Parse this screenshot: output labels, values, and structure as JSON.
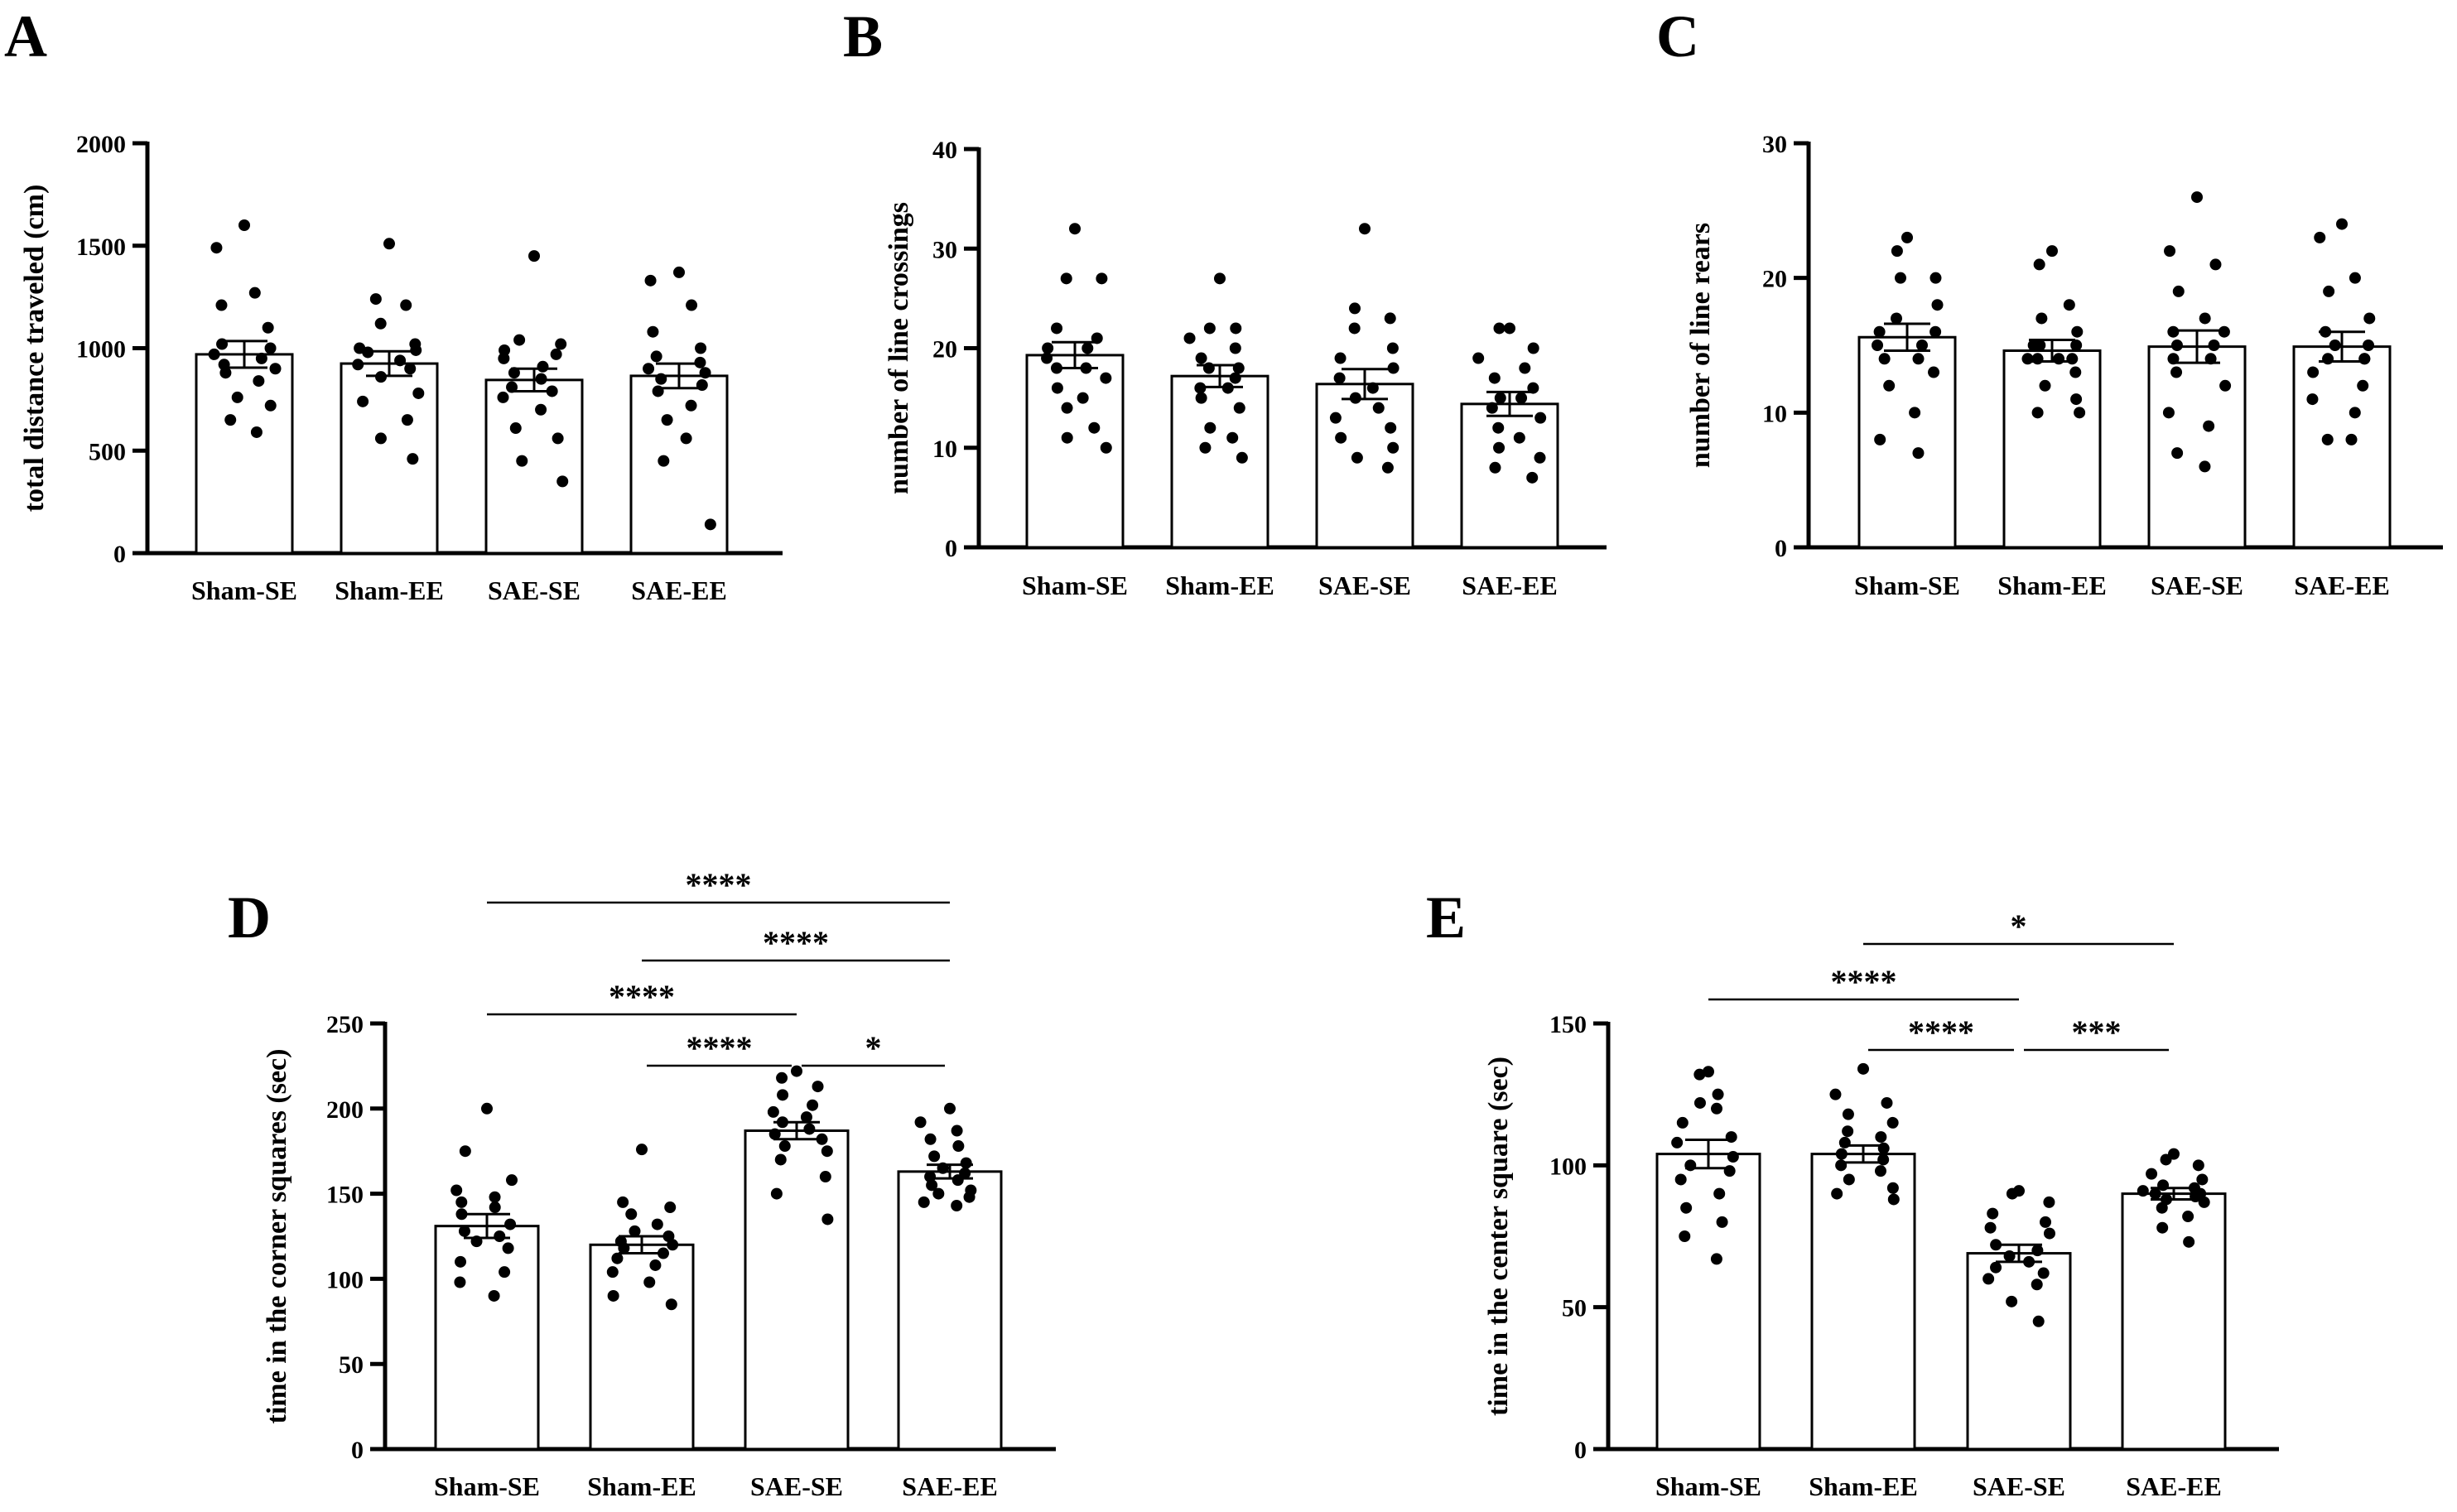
{
  "chart_data": [
    {
      "panel": "A",
      "type": "bar",
      "ylabel": "total distance traveled (cm)",
      "ylim": [
        0,
        2000
      ],
      "yticks": [
        "0",
        "500",
        "1000",
        "1500",
        "2000"
      ],
      "categories": [
        "Sham-SE",
        "Sham-EE",
        "SAE-SE",
        "SAE-EE"
      ],
      "values": [
        970,
        925,
        845,
        865
      ],
      "errors": [
        65,
        60,
        55,
        60
      ],
      "points": [
        [
          1600,
          1490,
          1270,
          1210,
          1100,
          1020,
          1000,
          970,
          950,
          920,
          900,
          880,
          840,
          760,
          720,
          650,
          590
        ],
        [
          1510,
          1240,
          1210,
          1120,
          1020,
          1000,
          990,
          980,
          940,
          920,
          900,
          860,
          780,
          740,
          650,
          560,
          460
        ],
        [
          1450,
          1040,
          1020,
          990,
          970,
          950,
          910,
          880,
          850,
          810,
          790,
          760,
          700,
          610,
          560,
          450,
          350
        ],
        [
          1370,
          1330,
          1210,
          1080,
          1000,
          960,
          930,
          900,
          880,
          850,
          820,
          790,
          720,
          650,
          560,
          450,
          140
        ]
      ],
      "significance": []
    },
    {
      "panel": "B",
      "type": "bar",
      "ylabel": "number of line crossings",
      "ylim": [
        0,
        40
      ],
      "yticks": [
        "0",
        "10",
        "20",
        "30",
        "40"
      ],
      "categories": [
        "Sham-SE",
        "Sham-EE",
        "SAE-SE",
        "SAE-EE"
      ],
      "values": [
        19.3,
        17.2,
        16.4,
        14.4
      ],
      "errors": [
        1.3,
        1.1,
        1.5,
        1.2
      ],
      "points": [
        [
          32,
          27,
          27,
          22,
          21,
          20,
          20,
          19,
          18,
          18,
          17,
          16,
          15,
          14,
          12,
          11,
          10
        ],
        [
          27,
          22,
          22,
          21,
          20,
          19,
          18,
          18,
          17,
          16,
          16,
          15,
          14,
          12,
          11,
          10,
          9
        ],
        [
          32,
          24,
          23,
          22,
          20,
          19,
          18,
          17,
          16,
          15,
          14,
          13,
          12,
          11,
          10,
          9,
          8
        ],
        [
          22,
          22,
          20,
          19,
          18,
          17,
          16,
          15,
          15,
          14,
          13,
          12,
          11,
          10,
          9,
          8,
          7
        ]
      ],
      "significance": []
    },
    {
      "panel": "C",
      "type": "bar",
      "ylabel": "number of line rears",
      "ylim": [
        0,
        30
      ],
      "yticks": [
        "0",
        "10",
        "20",
        "30"
      ],
      "categories": [
        "Sham-SE",
        "Sham-EE",
        "SAE-SE",
        "SAE-EE"
      ],
      "values": [
        15.6,
        14.6,
        14.9,
        14.9
      ],
      "errors": [
        1.0,
        0.8,
        1.2,
        1.1
      ],
      "points": [
        [
          23,
          22,
          20,
          20,
          18,
          17,
          16,
          16,
          15,
          15,
          14,
          14,
          13,
          12,
          10,
          8,
          7
        ],
        [
          22,
          21,
          18,
          17,
          16,
          15,
          15,
          15,
          14,
          14,
          14,
          14,
          13,
          12,
          11,
          10,
          10
        ],
        [
          26,
          22,
          21,
          19,
          17,
          16,
          16,
          15,
          15,
          14,
          14,
          13,
          12,
          10,
          9,
          7,
          6
        ],
        [
          24,
          23,
          20,
          19,
          17,
          16,
          15,
          15,
          14,
          14,
          14,
          13,
          12,
          11,
          10,
          8,
          8
        ]
      ],
      "significance": []
    },
    {
      "panel": "D",
      "type": "bar",
      "ylabel": "time in the corner squares (sec)",
      "ylim": [
        0,
        250
      ],
      "yticks": [
        "0",
        "50",
        "100",
        "150",
        "200",
        "250"
      ],
      "categories": [
        "Sham-SE",
        "Sham-EE",
        "SAE-SE",
        "SAE-EE"
      ],
      "values": [
        131,
        120,
        187,
        163
      ],
      "errors": [
        7,
        5,
        5,
        4
      ],
      "points": [
        [
          200,
          175,
          158,
          152,
          148,
          145,
          142,
          138,
          132,
          128,
          125,
          122,
          118,
          110,
          104,
          98,
          90
        ],
        [
          176,
          145,
          142,
          138,
          132,
          128,
          125,
          122,
          120,
          118,
          115,
          112,
          108,
          104,
          98,
          90,
          85
        ],
        [
          222,
          218,
          213,
          208,
          202,
          198,
          195,
          192,
          188,
          185,
          182,
          178,
          175,
          170,
          160,
          150,
          135
        ],
        [
          200,
          192,
          187,
          182,
          178,
          172,
          168,
          165,
          162,
          160,
          158,
          155,
          152,
          150,
          148,
          145,
          143
        ]
      ],
      "significance": [
        {
          "from": 0,
          "to": 3,
          "label": "****"
        },
        {
          "from": 1,
          "to": 3,
          "label": "****"
        },
        {
          "from": 0,
          "to": 2,
          "label": "****"
        },
        {
          "from": 1,
          "to": 2,
          "label": "****"
        },
        {
          "from": 2,
          "to": 3,
          "label": "*"
        }
      ]
    },
    {
      "panel": "E",
      "type": "bar",
      "ylabel": "time in the center square (sec)",
      "ylim": [
        0,
        150
      ],
      "yticks": [
        "0",
        "50",
        "100",
        "150"
      ],
      "categories": [
        "Sham-SE",
        "Sham-EE",
        "SAE-SE",
        "SAE-EE"
      ],
      "values": [
        104,
        104,
        69,
        90
      ],
      "errors": [
        5,
        3,
        3,
        2
      ],
      "points": [
        [
          133,
          132,
          125,
          122,
          120,
          115,
          110,
          108,
          103,
          100,
          98,
          95,
          90,
          85,
          80,
          75,
          67
        ],
        [
          134,
          125,
          122,
          118,
          115,
          112,
          110,
          108,
          106,
          104,
          102,
          100,
          98,
          95,
          92,
          90,
          88
        ],
        [
          91,
          90,
          87,
          83,
          80,
          78,
          76,
          72,
          70,
          68,
          66,
          64,
          62,
          60,
          58,
          52,
          45
        ],
        [
          104,
          102,
          100,
          97,
          95,
          93,
          92,
          91,
          90,
          90,
          89,
          88,
          87,
          85,
          82,
          78,
          73
        ]
      ],
      "significance": [
        {
          "from": 1,
          "to": 3,
          "label": "*"
        },
        {
          "from": 0,
          "to": 2,
          "label": "****"
        },
        {
          "from": 1,
          "to": 2,
          "label": "****"
        },
        {
          "from": 2,
          "to": 3,
          "label": "***"
        }
      ]
    }
  ]
}
